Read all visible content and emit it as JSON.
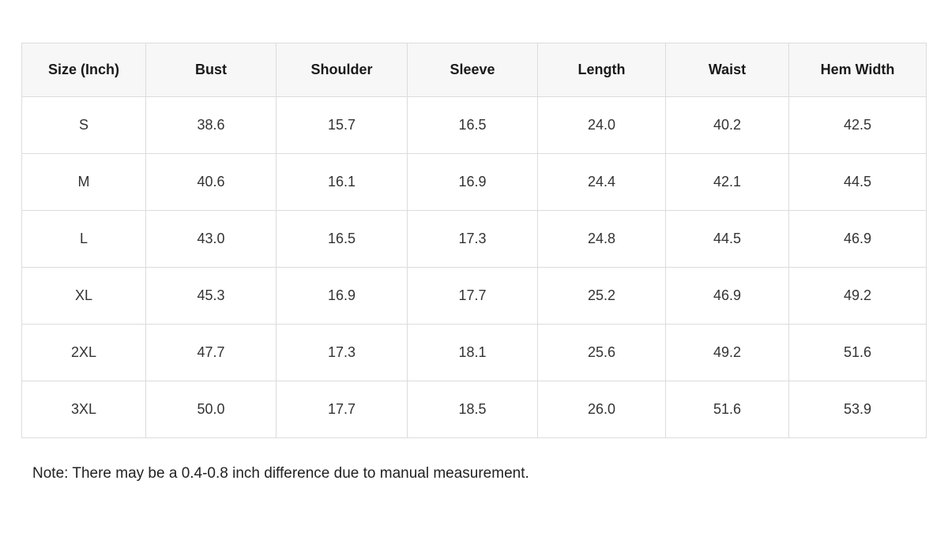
{
  "table": {
    "header": [
      "Size (Inch)",
      "Bust",
      "Shoulder",
      "Sleeve",
      "Length",
      "Waist",
      "Hem Width"
    ],
    "rows": [
      [
        "S",
        "38.6",
        "15.7",
        "16.5",
        "24.0",
        "40.2",
        "42.5"
      ],
      [
        "M",
        "40.6",
        "16.1",
        "16.9",
        "24.4",
        "42.1",
        "44.5"
      ],
      [
        "L",
        "43.0",
        "16.5",
        "17.3",
        "24.8",
        "44.5",
        "46.9"
      ],
      [
        "XL",
        "45.3",
        "16.9",
        "17.7",
        "25.2",
        "46.9",
        "49.2"
      ],
      [
        "2XL",
        "47.7",
        "17.3",
        "18.1",
        "25.6",
        "49.2",
        "51.6"
      ],
      [
        "3XL",
        "50.0",
        "17.7",
        "18.5",
        "26.0",
        "51.6",
        "53.9"
      ]
    ]
  },
  "note": "Note: There may be a 0.4-0.8 inch difference due to manual measurement."
}
